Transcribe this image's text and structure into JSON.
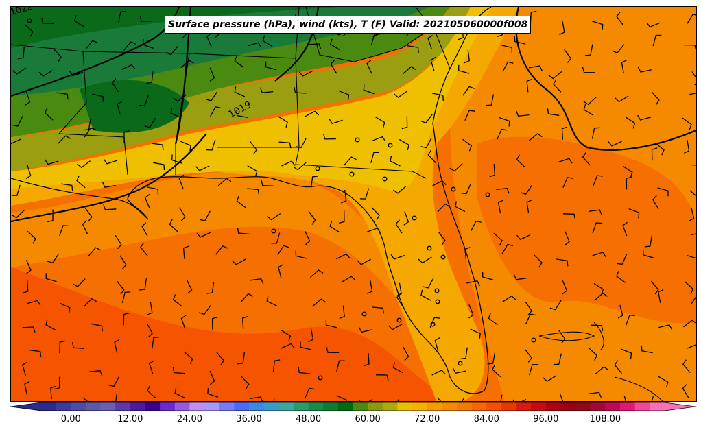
{
  "title": "Surface pressure (hPa), wind (kts), T (F) Valid: 202105060000f008",
  "isobar_labels": [
    "1019",
    "1022"
  ],
  "colorbar": {
    "min": -6,
    "max": 120,
    "step": 3,
    "tick_labels": [
      "0.00",
      "12.00",
      "24.00",
      "36.00",
      "48.00",
      "60.00",
      "72.00",
      "84.00",
      "96.00",
      "108.00"
    ],
    "tick_values": [
      0,
      12,
      24,
      36,
      48,
      60,
      72,
      84,
      96,
      108
    ],
    "colors": [
      "#2b2b8c",
      "#3b3ba0",
      "#4c4ca8",
      "#5a5aa8",
      "#6a5fb0",
      "#5a3aa8",
      "#4a1aa0",
      "#3a0090",
      "#6a2ad0",
      "#9a5ae0",
      "#c090f0",
      "#a898f8",
      "#7a7af8",
      "#4a6af8",
      "#3a88e8",
      "#3a9ad0",
      "#3aa8a0",
      "#2a9a6a",
      "#1a8a4a",
      "#107a30",
      "#006a10",
      "#4a8a10",
      "#8a9a10",
      "#b0a810",
      "#e8c000",
      "#f5b000",
      "#f59a00",
      "#f58a00",
      "#f57a00",
      "#f56800",
      "#f55000",
      "#e83a00",
      "#d81a10",
      "#c80a10",
      "#b00010",
      "#980010",
      "#900818",
      "#a00838",
      "#c00858",
      "#e01878",
      "#f04898",
      "#f870b8"
    ]
  },
  "fill_colors": {
    "green_dark": "#0a6a1a",
    "green_mid": "#1a7a3a",
    "green_olive": "#4a8a10",
    "olive": "#9a9e10",
    "yellow": "#eec000",
    "gold": "#f5a800",
    "orange": "#f58a00",
    "orange_dark": "#f57000",
    "red_orange": "#f55500"
  }
}
